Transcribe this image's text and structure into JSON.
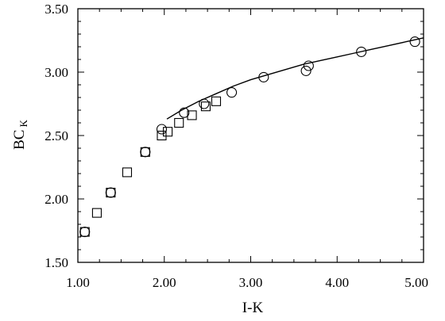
{
  "chart_data": {
    "type": "scatter",
    "title": "",
    "xlabel": "I-K",
    "ylabel": "BC",
    "ylabel_subscript": "K",
    "xlim": [
      1.0,
      5.0
    ],
    "ylim": [
      1.5,
      3.5
    ],
    "xticks": [
      1.0,
      2.0,
      3.0,
      4.0,
      5.0
    ],
    "xtick_labels": [
      "1.00",
      "2.00",
      "3.00",
      "4.00",
      "5.00"
    ],
    "yticks": [
      1.5,
      2.0,
      2.5,
      3.0,
      3.5
    ],
    "ytick_labels": [
      "1.50",
      "2.00",
      "2.50",
      "3.00",
      "3.50"
    ],
    "grid": false,
    "legend": "none",
    "series": [
      {
        "marker": "square",
        "x": [
          1.08,
          1.22,
          1.38,
          1.57,
          1.78,
          1.97,
          2.04,
          2.17,
          2.32,
          2.48,
          2.6
        ],
        "y": [
          1.74,
          1.89,
          2.05,
          2.21,
          2.37,
          2.5,
          2.53,
          2.6,
          2.66,
          2.73,
          2.77
        ]
      },
      {
        "marker": "circle",
        "x": [
          1.08,
          1.38,
          1.78,
          1.97,
          2.23,
          2.46,
          2.78,
          3.15,
          3.64,
          3.67,
          4.28,
          4.9
        ],
        "y": [
          1.74,
          2.05,
          2.37,
          2.55,
          2.68,
          2.75,
          2.84,
          2.96,
          3.01,
          3.05,
          3.16,
          3.24
        ]
      },
      {
        "marker": "line",
        "x": [
          2.03,
          2.2,
          2.4,
          2.6,
          2.8,
          3.0,
          3.2,
          3.4,
          3.6,
          3.8,
          4.0,
          4.2,
          4.4,
          4.6,
          4.8,
          5.0
        ],
        "y": [
          2.63,
          2.7,
          2.77,
          2.83,
          2.89,
          2.94,
          2.98,
          3.02,
          3.06,
          3.09,
          3.12,
          3.15,
          3.18,
          3.21,
          3.24,
          3.27
        ]
      }
    ]
  }
}
